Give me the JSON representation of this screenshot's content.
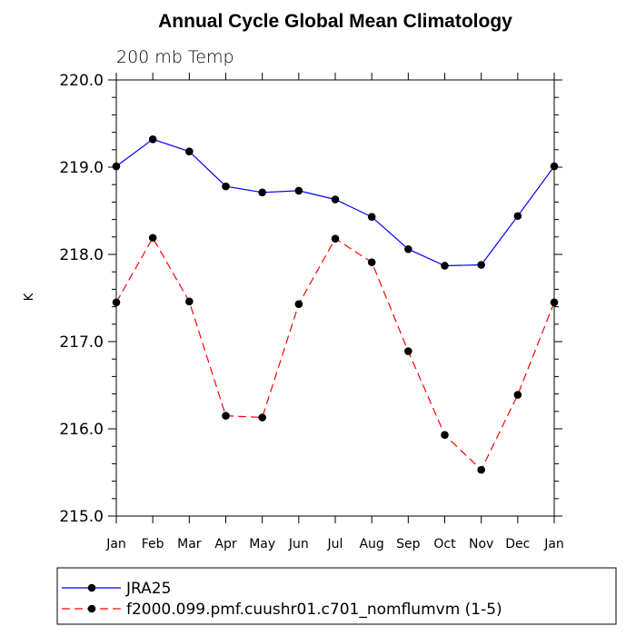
{
  "chart_data": {
    "type": "line",
    "title": "Annual Cycle Global Mean Climatology",
    "subtitle": "200 mb Temp",
    "xlabel": "",
    "ylabel": "K",
    "ylim": [
      215.0,
      220.0
    ],
    "y_ticks": [
      "215.0",
      "216.0",
      "217.0",
      "218.0",
      "219.0",
      "220.0"
    ],
    "categories": [
      "Jan",
      "Feb",
      "Mar",
      "Apr",
      "May",
      "Jun",
      "Jul",
      "Aug",
      "Sep",
      "Oct",
      "Nov",
      "Dec",
      "Jan"
    ],
    "grid": false,
    "legend_position": "bottom",
    "series": [
      {
        "name": "JRA25",
        "color": "#0000ff",
        "dash": "solid",
        "values": [
          219.01,
          219.32,
          219.18,
          218.78,
          218.71,
          218.73,
          218.63,
          218.43,
          218.06,
          217.87,
          217.88,
          218.44,
          219.01
        ]
      },
      {
        "name": "f2000.099.pmf.cuushr01.c701_nomflumvm (1-5)",
        "color": "#ff0000",
        "dash": "dashed",
        "values": [
          217.45,
          218.19,
          217.46,
          216.15,
          216.13,
          217.43,
          218.18,
          217.91,
          216.89,
          215.93,
          215.53,
          216.39,
          217.45
        ]
      }
    ]
  }
}
